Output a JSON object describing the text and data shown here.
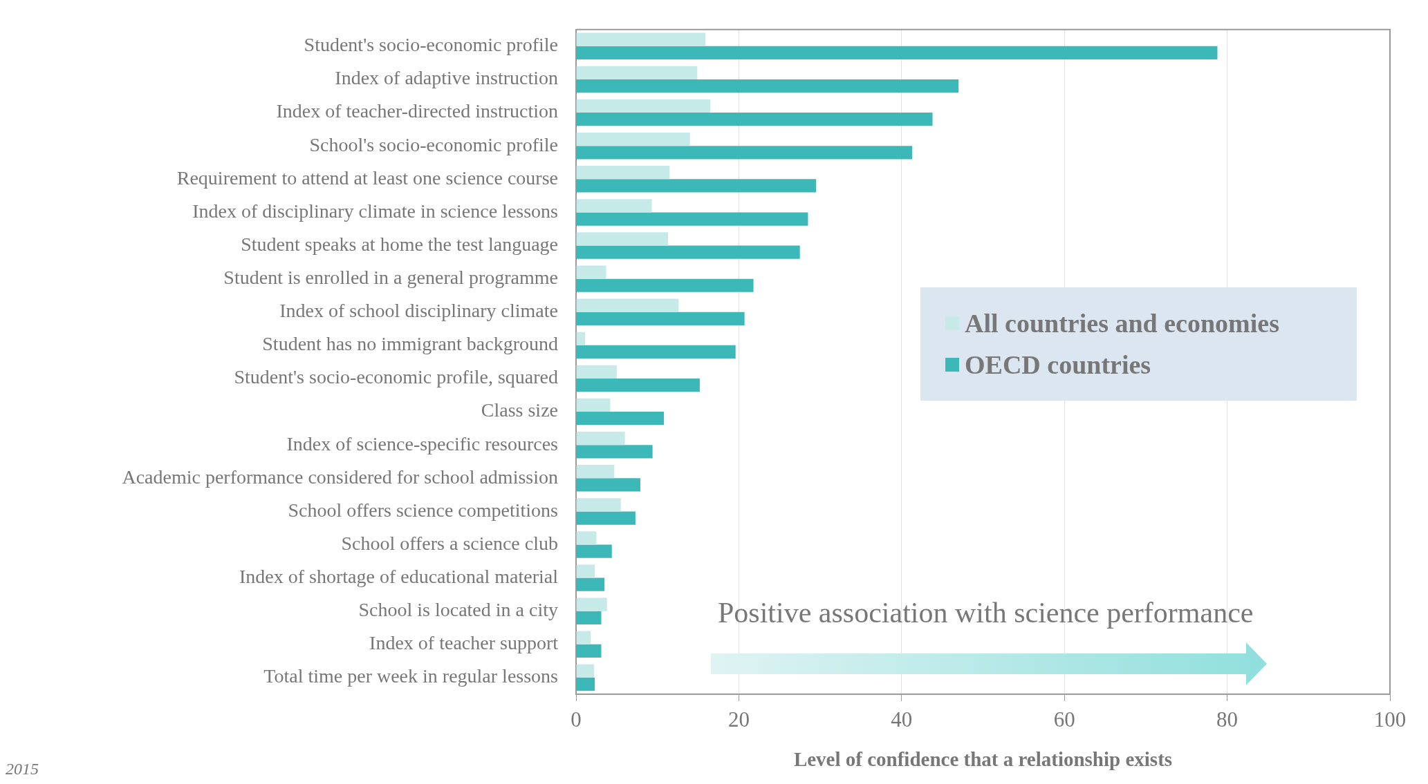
{
  "chart_data": {
    "type": "bar",
    "orientation": "horizontal",
    "xlabel": "Level of confidence that a relationship exists",
    "categories": [
      "Student's socio-economic profile",
      "Index of adaptive instruction",
      "Index of teacher-directed instruction",
      "School's socio-economic profile",
      "Requirement to attend at least one science course",
      "Index of disciplinary climate in science lessons",
      "Student speaks at home the test language",
      "Student is enrolled in a general programme",
      "Index of school disciplinary climate",
      "Student has no immigrant background",
      "Student's socio-economic profile, squared",
      "Class size",
      "Index of science-specific resources",
      "Academic performance considered for school admission",
      "School offers science competitions",
      "School offers a science club",
      "Index of shortage of educational material",
      "School is located in a city",
      "Index of teacher support",
      "Total time per week in regular lessons"
    ],
    "series": [
      {
        "name": "All countries and economies",
        "color": "#c5eae8",
        "values": [
          15.9,
          14.9,
          16.5,
          14,
          11.5,
          9.3,
          11.3,
          3.7,
          12.6,
          1.1,
          5,
          4.2,
          6,
          4.7,
          5.5,
          2.5,
          2.3,
          3.8,
          1.8,
          2.2
        ]
      },
      {
        "name": "OECD countries",
        "color": "#3db8b8",
        "values": [
          78.8,
          47,
          43.8,
          41.3,
          29.5,
          28.5,
          27.5,
          21.8,
          20.7,
          19.6,
          15.2,
          10.8,
          9.4,
          7.9,
          7.3,
          4.4,
          3.5,
          3.1,
          3.1,
          2.3
        ]
      }
    ],
    "xlim": [
      0,
      100
    ],
    "xticks": [
      0,
      20,
      40,
      60,
      80,
      100
    ],
    "grid": "x",
    "legend": "right",
    "annotations": [
      "Positive association with science performance",
      "2015"
    ]
  }
}
